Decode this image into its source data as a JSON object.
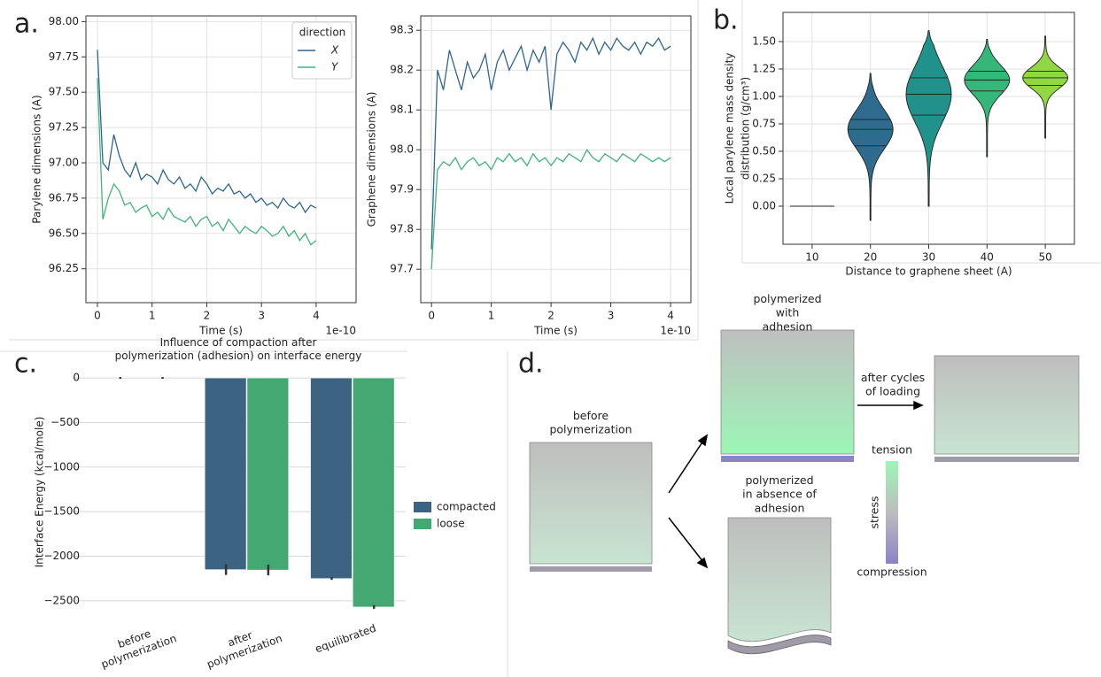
{
  "panel_labels": [
    "a.",
    "b.",
    "c.",
    "d."
  ],
  "chart_data": [
    {
      "type": "line",
      "ylabel": "Parylene dimensions (A)",
      "xlabel": "Time (s)",
      "x_offset_label": "1e-10",
      "xlim": [
        -0.21,
        4.73
      ],
      "ylim": [
        96.01,
        98.04
      ],
      "xticks": [
        0,
        1,
        2,
        3,
        4
      ],
      "yticks": [
        96.25,
        {
          "value": 96.5,
          "label": "96.50"
        },
        96.75,
        {
          "value": 97,
          "label": "97.00"
        },
        97.25,
        {
          "value": 97.5,
          "label": "97.50"
        },
        97.75,
        {
          "value": 98,
          "label": "98.00"
        }
      ],
      "grid": true,
      "legend": "upper right",
      "legend_title": "direction",
      "x": [
        0,
        0.1,
        0.2,
        0.3,
        0.4,
        0.5,
        0.6,
        0.7,
        0.8,
        0.9,
        1.0,
        1.1,
        1.2,
        1.3,
        1.4,
        1.5,
        1.6,
        1.7,
        1.8,
        1.9,
        2.0,
        2.1,
        2.2,
        2.3,
        2.4,
        2.5,
        2.6,
        2.7,
        2.8,
        2.9,
        3.0,
        3.1,
        3.2,
        3.3,
        3.4,
        3.5,
        3.6,
        3.7,
        3.8,
        3.9,
        4.0
      ],
      "series": [
        {
          "name": "X",
          "color": "#2e6590",
          "values": [
            97.8,
            97.0,
            96.95,
            97.2,
            97.05,
            96.95,
            96.9,
            97.0,
            96.88,
            96.92,
            96.9,
            96.85,
            96.95,
            96.88,
            96.85,
            96.9,
            96.82,
            96.85,
            96.8,
            96.9,
            96.85,
            96.78,
            96.82,
            96.8,
            96.85,
            96.78,
            96.8,
            96.75,
            96.78,
            96.72,
            96.75,
            96.7,
            96.72,
            96.68,
            96.75,
            96.7,
            96.68,
            96.72,
            96.65,
            96.7,
            96.68
          ]
        },
        {
          "name": "Y",
          "color": "#3fb57a",
          "values": [
            97.6,
            96.6,
            96.75,
            96.85,
            96.8,
            96.7,
            96.72,
            96.65,
            96.68,
            96.7,
            96.62,
            96.65,
            96.6,
            96.68,
            96.62,
            96.6,
            96.58,
            96.62,
            96.55,
            96.6,
            96.62,
            96.55,
            96.58,
            96.52,
            96.6,
            96.55,
            96.5,
            96.55,
            96.52,
            96.5,
            96.55,
            96.52,
            96.48,
            96.5,
            96.55,
            96.48,
            96.52,
            96.45,
            96.5,
            96.42,
            96.45
          ]
        }
      ]
    },
    {
      "type": "line",
      "ylabel": "Graphene dimensions (A)",
      "xlabel": "Time (s)",
      "x_offset_label": "1e-10",
      "xlim": [
        -0.18,
        4.34
      ],
      "ylim": [
        97.616,
        98.336
      ],
      "xticks": [
        0,
        1,
        2,
        3,
        4
      ],
      "yticks": [
        97.7,
        97.8,
        97.9,
        {
          "value": 98,
          "label": "98.0"
        },
        98.1,
        98.2,
        98.3
      ],
      "grid": true,
      "x": [
        0,
        0.1,
        0.2,
        0.3,
        0.4,
        0.5,
        0.6,
        0.7,
        0.8,
        0.9,
        1.0,
        1.1,
        1.2,
        1.3,
        1.4,
        1.5,
        1.6,
        1.7,
        1.8,
        1.9,
        2.0,
        2.1,
        2.2,
        2.3,
        2.4,
        2.5,
        2.6,
        2.7,
        2.8,
        2.9,
        3.0,
        3.1,
        3.2,
        3.3,
        3.4,
        3.5,
        3.6,
        3.7,
        3.8,
        3.9,
        4.0
      ],
      "series": [
        {
          "color": "#2e6590",
          "values": [
            97.75,
            98.2,
            98.15,
            98.25,
            98.2,
            98.15,
            98.22,
            98.18,
            98.2,
            98.24,
            98.15,
            98.22,
            98.25,
            98.2,
            98.23,
            98.26,
            98.2,
            98.25,
            98.22,
            98.26,
            98.1,
            98.24,
            98.27,
            98.25,
            98.22,
            98.27,
            98.25,
            98.28,
            98.24,
            98.27,
            98.25,
            98.28,
            98.26,
            98.25,
            98.27,
            98.24,
            98.27,
            98.26,
            98.28,
            98.25,
            98.26
          ]
        },
        {
          "color": "#3fb57a",
          "values": [
            97.7,
            97.95,
            97.97,
            97.96,
            97.98,
            97.95,
            97.97,
            97.98,
            97.96,
            97.97,
            97.95,
            97.98,
            97.97,
            97.99,
            97.97,
            97.98,
            97.96,
            97.99,
            97.97,
            97.98,
            97.96,
            97.98,
            97.97,
            97.99,
            97.98,
            97.97,
            98.0,
            97.98,
            97.97,
            97.99,
            97.98,
            97.97,
            97.99,
            97.98,
            97.97,
            97.99,
            97.98,
            97.97,
            97.98,
            97.97,
            97.98
          ]
        }
      ]
    },
    {
      "type": "violin",
      "ylabel": [
        "Local parylene mass density",
        "distribution (g/cm³)"
      ],
      "xlabel": "Distance to graphene sheet (A)",
      "ylim": [
        -0.347,
        1.766
      ],
      "yticks": [
        {
          "value": 0,
          "label": "0.00"
        },
        0.25,
        {
          "value": 0.5,
          "label": "0.50"
        },
        0.75,
        {
          "value": 1,
          "label": "1.00"
        },
        1.25,
        {
          "value": 1.5,
          "label": "1.50"
        }
      ],
      "grid": true,
      "categories": [
        "10",
        "20",
        "30",
        "40",
        "50"
      ],
      "colors": [
        "#443983",
        "#2f6b8e",
        "#21918c",
        "#35b779",
        "#90d743"
      ],
      "min": [
        0,
        -0.13,
        0.0,
        0.45,
        0.62
      ],
      "q1": [
        0,
        0.55,
        0.83,
        1.05,
        1.1
      ],
      "median": [
        0,
        0.7,
        1.02,
        1.15,
        1.17
      ],
      "q3": [
        0,
        0.79,
        1.17,
        1.23,
        1.23
      ],
      "max": [
        0,
        1.21,
        1.6,
        1.52,
        1.55
      ]
    },
    {
      "type": "bar",
      "title": "Influence of compaction after\npolymerization (adhesion) on interface energy",
      "ylabel": "Interface Energy (kcal/mole)",
      "ylim": [
        -2710,
        150
      ],
      "yticks": [
        0,
        {
          "value": -500,
          "label": "−500"
        },
        {
          "value": -1000,
          "label": "−1000"
        },
        {
          "value": -1500,
          "label": "−1500"
        },
        {
          "value": -2000,
          "label": "−2000"
        },
        {
          "value": -2500,
          "label": "−2500"
        }
      ],
      "grid": true,
      "legend": "right",
      "categories": [
        "before\npolymerization",
        "after\npolymerization",
        "equilibrated"
      ],
      "series": [
        {
          "name": "compacted",
          "color": "#3d6383",
          "values": [
            0,
            -2150,
            -2250
          ],
          "errors": [
            10,
            60,
            15
          ]
        },
        {
          "name": "loose",
          "color": "#44a872",
          "values": [
            0,
            -2155,
            -2570
          ],
          "errors": [
            10,
            60,
            20
          ]
        }
      ]
    }
  ],
  "diagram": {
    "before": "before\npolymerization",
    "with_adhesion": "polymerized\nwith\nadhesion",
    "cycles": "after cycles\nof loading",
    "absence": "polymerized\nin absence of\nadhesion",
    "tension": "tension",
    "stress": "stress",
    "compression": "compression"
  }
}
